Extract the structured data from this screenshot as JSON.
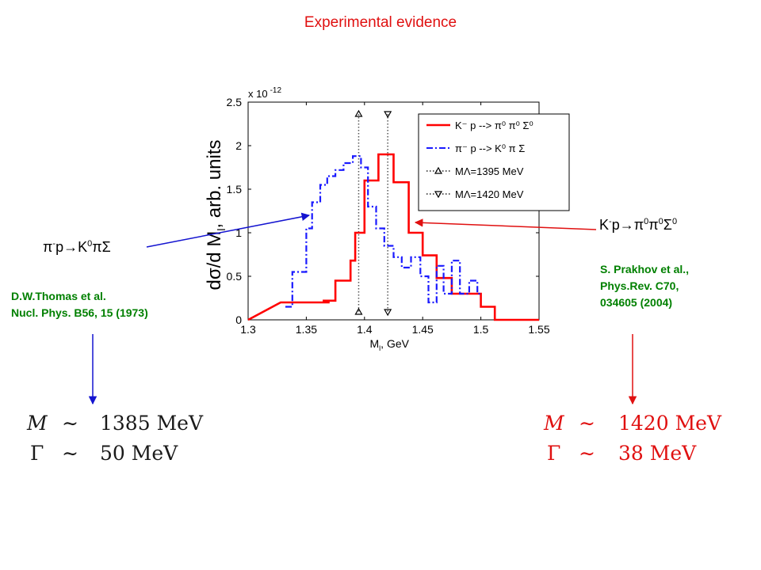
{
  "title": "Experimental evidence",
  "left_reaction": {
    "pre": "π",
    "sup1": "-",
    "mid": "p→K",
    "sup2": "0",
    "post": "πΣ"
  },
  "right_reaction": {
    "pre": "K",
    "sup1": "-",
    "mid": "p→π",
    "sup2": "0",
    "mid2": "π",
    "sup3": "0",
    "post": "Σ",
    "sup4": "0"
  },
  "left_ref": {
    "line1": "D.W.Thomas et al.",
    "line2": "Nucl. Phys. B56, 15 (1973)"
  },
  "right_ref": {
    "line1": "S. Prakhov et al.,",
    "line2": "Phys.Rev. C70,",
    "line3": "034605 (2004)"
  },
  "left_formula": {
    "m_sym": "M",
    "approx": "∼",
    "m_val": "1385 MeV",
    "g_sym": "Γ",
    "g_val": "50 MeV",
    "color": "#1a1a1a"
  },
  "right_formula": {
    "m_sym": "M",
    "approx": "∼",
    "m_val": "1420 MeV",
    "g_sym": "Γ",
    "g_val": "38 MeV",
    "color": "#e01010"
  },
  "arrows": {
    "left_color": "#1414d0",
    "right_color": "#e01010"
  },
  "chart_data": {
    "type": "line",
    "xlabel": "Mₗ, GeV",
    "xlabel_main": "M",
    "xlabel_sub": "l",
    "xlabel_unit": ", GeV",
    "ylabel": "dσ/d Mₗ, arb. units",
    "ylabel_pre": "dσ/d M",
    "ylabel_sub": "l",
    "ylabel_post": ", arb. units",
    "y_exponent": "x 10",
    "y_exponent_power": "-12",
    "xlim": [
      1.3,
      1.55
    ],
    "ylim": [
      0,
      2.5
    ],
    "xticks": [
      "1.3",
      "1.35",
      "1.4",
      "1.45",
      "1.5",
      "1.55"
    ],
    "yticks": [
      "0",
      "0.5",
      "1",
      "1.5",
      "2",
      "2.5"
    ],
    "grid": false,
    "legend_position": "top-right",
    "series": [
      {
        "name": "K⁻ p --> π⁰ π⁰ Σ⁰",
        "color": "#ff0000",
        "style": "solid",
        "steps": [
          [
            1.3,
            0
          ],
          [
            1.328,
            0.2
          ],
          [
            1.365,
            0.2
          ],
          [
            1.37,
            0.2
          ],
          [
            1.37,
            0.2
          ],
          [
            1.365,
            0.2
          ],
          [
            1.365,
            0.22
          ],
          [
            1.375,
            0.22
          ],
          [
            1.375,
            0.45
          ],
          [
            1.388,
            0.45
          ],
          [
            1.388,
            0.68
          ],
          [
            1.392,
            0.68
          ],
          [
            1.392,
            1.0
          ],
          [
            1.4,
            1.0
          ],
          [
            1.4,
            1.6
          ],
          [
            1.412,
            1.6
          ],
          [
            1.412,
            1.9
          ],
          [
            1.425,
            1.9
          ],
          [
            1.425,
            1.58
          ],
          [
            1.438,
            1.58
          ],
          [
            1.438,
            1.0
          ],
          [
            1.45,
            1.0
          ],
          [
            1.45,
            0.74
          ],
          [
            1.462,
            0.74
          ],
          [
            1.462,
            0.48
          ],
          [
            1.475,
            0.48
          ],
          [
            1.475,
            0.3
          ],
          [
            1.5,
            0.3
          ],
          [
            1.5,
            0.15
          ],
          [
            1.512,
            0.15
          ],
          [
            1.512,
            0
          ],
          [
            1.55,
            0
          ]
        ]
      },
      {
        "name": "π⁻ p --> K⁰ π Σ",
        "color": "#1a1aff",
        "style": "dashdot",
        "steps": [
          [
            1.332,
            0.15
          ],
          [
            1.338,
            0.15
          ],
          [
            1.338,
            0.55
          ],
          [
            1.35,
            0.55
          ],
          [
            1.35,
            1.05
          ],
          [
            1.355,
            1.05
          ],
          [
            1.355,
            1.35
          ],
          [
            1.362,
            1.35
          ],
          [
            1.362,
            1.55
          ],
          [
            1.368,
            1.55
          ],
          [
            1.368,
            1.65
          ],
          [
            1.375,
            1.65
          ],
          [
            1.375,
            1.72
          ],
          [
            1.382,
            1.72
          ],
          [
            1.382,
            1.8
          ],
          [
            1.39,
            1.8
          ],
          [
            1.39,
            1.88
          ],
          [
            1.397,
            1.88
          ],
          [
            1.397,
            1.75
          ],
          [
            1.403,
            1.75
          ],
          [
            1.403,
            1.3
          ],
          [
            1.41,
            1.3
          ],
          [
            1.41,
            1.05
          ],
          [
            1.417,
            1.05
          ],
          [
            1.417,
            0.85
          ],
          [
            1.425,
            0.85
          ],
          [
            1.425,
            0.72
          ],
          [
            1.432,
            0.72
          ],
          [
            1.432,
            0.6
          ],
          [
            1.44,
            0.6
          ],
          [
            1.44,
            0.72
          ],
          [
            1.448,
            0.72
          ],
          [
            1.448,
            0.5
          ],
          [
            1.455,
            0.5
          ],
          [
            1.455,
            0.2
          ],
          [
            1.462,
            0.2
          ],
          [
            1.462,
            0.62
          ],
          [
            1.468,
            0.62
          ],
          [
            1.468,
            0.3
          ],
          [
            1.475,
            0.3
          ],
          [
            1.475,
            0.68
          ],
          [
            1.482,
            0.68
          ],
          [
            1.482,
            0.3
          ],
          [
            1.49,
            0.3
          ],
          [
            1.49,
            0.45
          ],
          [
            1.497,
            0.45
          ],
          [
            1.497,
            0.3
          ],
          [
            1.5,
            0.3
          ]
        ]
      },
      {
        "name": "MΛ=1395 MeV",
        "color": "#555555",
        "style": "dotted",
        "x": 1.395,
        "marker": "triangle-up"
      },
      {
        "name": "MΛ=1420 MeV",
        "color": "#555555",
        "style": "dotted",
        "x": 1.42,
        "marker": "triangle-down"
      }
    ]
  }
}
